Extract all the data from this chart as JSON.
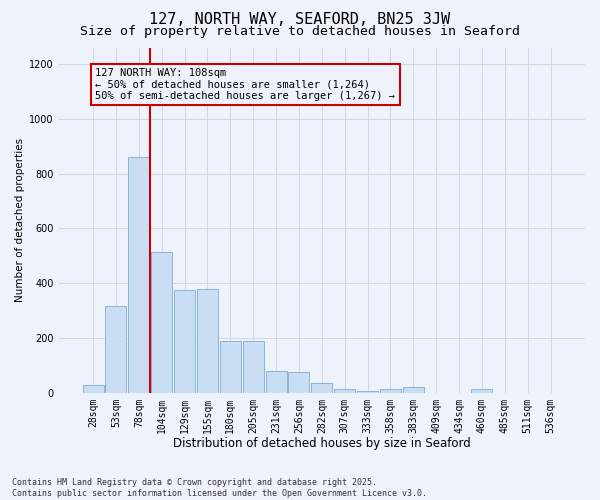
{
  "title1": "127, NORTH WAY, SEAFORD, BN25 3JW",
  "title2": "Size of property relative to detached houses in Seaford",
  "xlabel": "Distribution of detached houses by size in Seaford",
  "ylabel": "Number of detached properties",
  "categories": [
    "28sqm",
    "53sqm",
    "78sqm",
    "104sqm",
    "129sqm",
    "155sqm",
    "180sqm",
    "205sqm",
    "231sqm",
    "256sqm",
    "282sqm",
    "307sqm",
    "333sqm",
    "358sqm",
    "383sqm",
    "409sqm",
    "434sqm",
    "460sqm",
    "485sqm",
    "511sqm",
    "536sqm"
  ],
  "values": [
    30,
    315,
    860,
    515,
    375,
    380,
    190,
    190,
    80,
    75,
    35,
    15,
    5,
    15,
    20,
    0,
    0,
    12,
    0,
    0,
    0
  ],
  "bar_color": "#c9ddf5",
  "bar_edge_color": "#8cb4d8",
  "vline_x_index": 3,
  "vline_color": "#cc0000",
  "vline_linewidth": 1.5,
  "annotation_text": "127 NORTH WAY: 108sqm\n← 50% of detached houses are smaller (1,264)\n50% of semi-detached houses are larger (1,267) →",
  "box_color": "#cc0000",
  "ylim": [
    0,
    1260
  ],
  "yticks": [
    0,
    200,
    400,
    600,
    800,
    1000,
    1200
  ],
  "grid_color": "#cdd6e8",
  "bg_color": "#eef2fb",
  "footnote": "Contains HM Land Registry data © Crown copyright and database right 2025.\nContains public sector information licensed under the Open Government Licence v3.0.",
  "title1_fontsize": 11,
  "title2_fontsize": 9.5,
  "xlabel_fontsize": 8.5,
  "ylabel_fontsize": 7.5,
  "tick_fontsize": 7,
  "annotation_fontsize": 7.5,
  "footnote_fontsize": 6
}
